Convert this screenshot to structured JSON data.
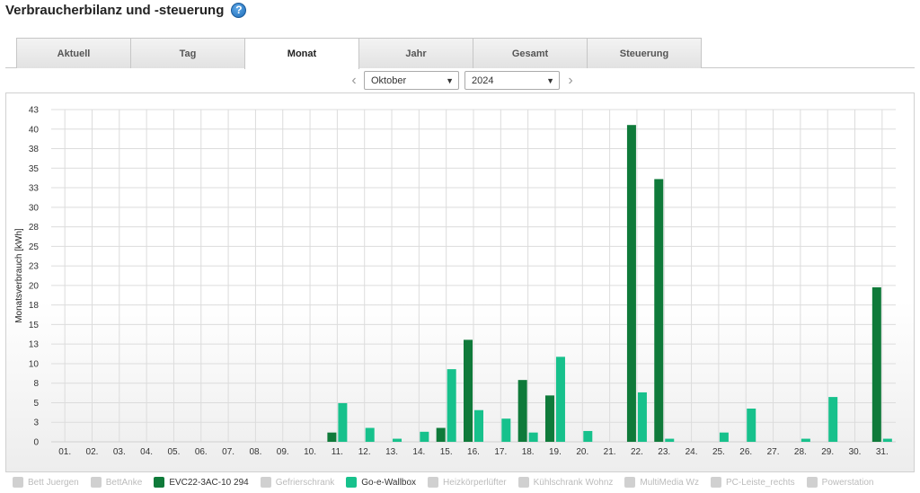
{
  "header": {
    "title": "Verbraucherbilanz und -steuerung",
    "help_glyph": "?"
  },
  "tabs": [
    {
      "label": "Aktuell",
      "active": false
    },
    {
      "label": "Tag",
      "active": false
    },
    {
      "label": "Monat",
      "active": true
    },
    {
      "label": "Jahr",
      "active": false
    },
    {
      "label": "Gesamt",
      "active": false
    },
    {
      "label": "Steuerung",
      "active": false
    }
  ],
  "selectors": {
    "month": "Oktober",
    "year": "2024"
  },
  "colors": {
    "evc": "#0f7a3a",
    "wallbox": "#17c18c",
    "grid": "#dcdcdc",
    "inactive_legend": "#d0d0d0"
  },
  "chart_data": {
    "type": "bar",
    "ylabel": "Monatsverbrauch [kWh]",
    "ylim": [
      0,
      43
    ],
    "yticks": [
      "0",
      "3",
      "5",
      "8",
      "10",
      "13",
      "15",
      "18",
      "20",
      "23",
      "25",
      "28",
      "30",
      "33",
      "35",
      "38",
      "40",
      "43"
    ],
    "grid": true,
    "categories": [
      "01.",
      "02.",
      "03.",
      "04.",
      "05.",
      "06.",
      "07.",
      "08.",
      "09.",
      "10.",
      "11.",
      "12.",
      "13.",
      "14.",
      "15.",
      "16.",
      "17.",
      "18.",
      "19.",
      "20.",
      "21.",
      "22.",
      "23.",
      "24.",
      "25.",
      "26.",
      "27.",
      "28.",
      "29.",
      "30.",
      "31."
    ],
    "series": [
      {
        "name": "EVC22-3AC-10 294",
        "color": "#0f7a3a",
        "values": [
          0,
          0,
          0,
          0,
          0,
          0,
          0,
          0,
          0,
          0,
          1.2,
          0,
          0,
          0,
          1.8,
          13.2,
          0,
          8.0,
          6.0,
          0,
          0,
          41.0,
          34.0,
          0,
          0,
          0,
          0,
          0,
          0,
          0,
          20.0
        ]
      },
      {
        "name": "Go-e-Wallbox",
        "color": "#17c18c",
        "values": [
          0,
          0,
          0,
          0,
          0,
          0,
          0,
          0,
          0,
          0,
          5.0,
          1.8,
          0.4,
          1.3,
          9.4,
          4.1,
          3.0,
          1.2,
          11.0,
          1.4,
          0,
          6.4,
          0.4,
          0,
          1.2,
          4.3,
          0,
          0.4,
          5.8,
          0,
          0.4
        ]
      }
    ],
    "legend": [
      {
        "label": "Bett Juergen",
        "active": false
      },
      {
        "label": "BettAnke",
        "active": false
      },
      {
        "label": "EVC22-3AC-10 294",
        "active": true,
        "series": 0
      },
      {
        "label": "Gefrierschrank",
        "active": false
      },
      {
        "label": "Go-e-Wallbox",
        "active": true,
        "series": 1
      },
      {
        "label": "Heizkörperlüfter",
        "active": false
      },
      {
        "label": "Kühlschrank Wohnz",
        "active": false
      },
      {
        "label": "MultiMedia Wz",
        "active": false
      },
      {
        "label": "PC-Leiste_rechts",
        "active": false
      },
      {
        "label": "Powerstation",
        "active": false
      }
    ],
    "legend_position": "bottom"
  }
}
